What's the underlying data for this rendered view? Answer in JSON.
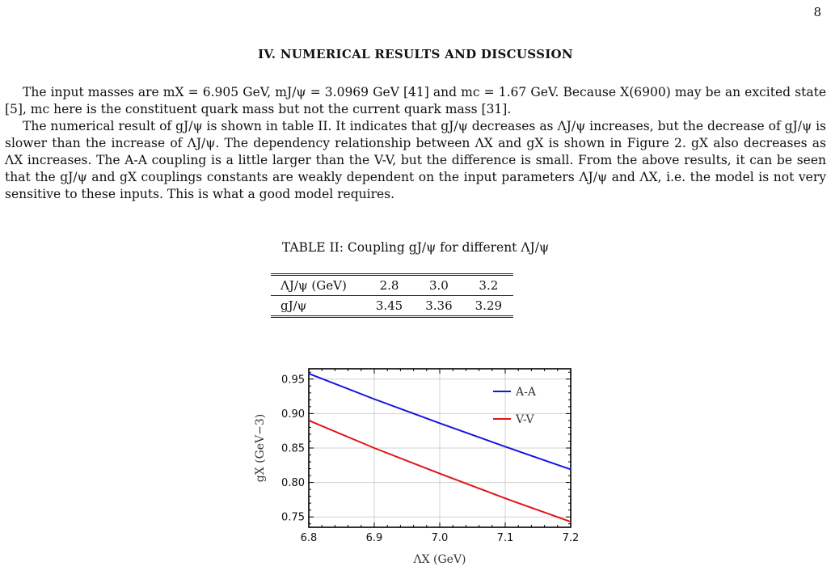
{
  "page_number": "8",
  "section_title": "IV.   NUMERICAL RESULTS AND DISCUSSION",
  "paragraphs": {
    "p1": "The input masses are mX = 6.905 GeV, mJ/ψ = 3.0969 GeV [41] and mc = 1.67 GeV. Because X(6900) may be an excited state [5], mc here is the constituent quark mass but not the current quark mass [31].",
    "p2": "The numerical result of gJ/ψ is shown in table II. It indicates that gJ/ψ decreases as ΛJ/ψ increases, but the decrease of gJ/ψ is slower than the increase of ΛJ/ψ. The dependency relationship between ΛX and gX is shown in Figure 2. gX also decreases as ΛX increases. The A-A coupling is a little larger than the V-V, but the difference is small. From the above results, it can be seen that the gJ/ψ and gX couplings constants are weakly dependent on the input parameters ΛJ/ψ and ΛX, i.e. the model is not very sensitive to these inputs. This is what a good model requires."
  },
  "table": {
    "caption": "TABLE II: Coupling gJ/ψ for different ΛJ/ψ",
    "header": [
      "ΛJ/ψ (GeV)",
      "2.8",
      "3.0",
      "3.2"
    ],
    "row": [
      "gJ/ψ",
      "3.45",
      "3.36",
      "3.29"
    ]
  },
  "chart_data": {
    "type": "line",
    "xlabel": "ΛX (GeV)",
    "ylabel": "gX (GeV−3)",
    "xlim": [
      6.8,
      7.2
    ],
    "ylim": [
      0.735,
      0.965
    ],
    "xticks": [
      "6.8",
      "6.9",
      "7.0",
      "7.1",
      "7.2"
    ],
    "yticks": [
      "0.75",
      "0.80",
      "0.85",
      "0.90",
      "0.95"
    ],
    "grid": true,
    "legend": "top-right",
    "series": [
      {
        "name": "A-A",
        "color": "#1515e0",
        "x": [
          6.8,
          6.9,
          7.0,
          7.1,
          7.2
        ],
        "y": [
          0.958,
          0.921,
          0.886,
          0.852,
          0.819
        ]
      },
      {
        "name": "V-V",
        "color": "#e01515",
        "x": [
          6.8,
          6.9,
          7.0,
          7.1,
          7.2
        ],
        "y": [
          0.89,
          0.85,
          0.813,
          0.777,
          0.743
        ]
      }
    ]
  }
}
